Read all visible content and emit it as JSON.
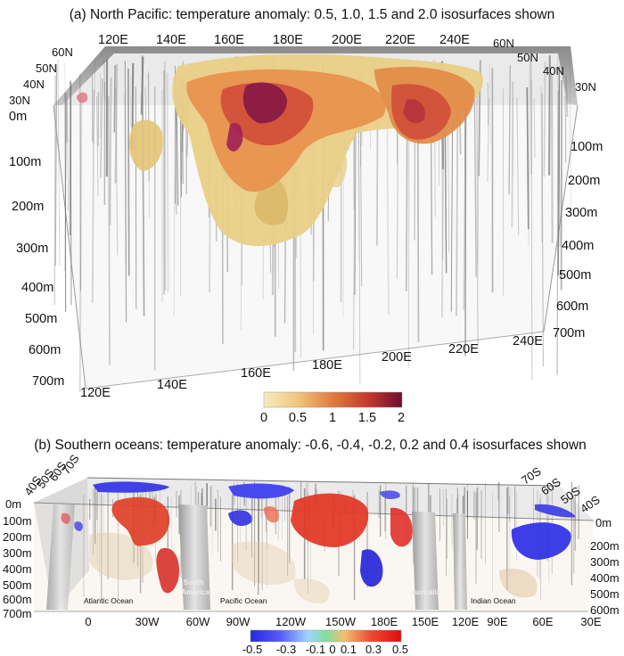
{
  "panel_a": {
    "title": "(a) North Pacific: temperature anomaly: 0.5, 1.0, 1.5 and 2.0 isosurfaces shown",
    "top_lon_labels": [
      "120E",
      "140E",
      "160E",
      "180E",
      "200E",
      "220E",
      "240E"
    ],
    "left_lat_labels": [
      "60N",
      "50N",
      "40N",
      "30N"
    ],
    "right_lat_labels": [
      "60N",
      "50N",
      "40N",
      "30N"
    ],
    "left_depth_labels": [
      "0m",
      "100m",
      "200m",
      "300m",
      "400m",
      "500m",
      "600m",
      "700m"
    ],
    "right_depth_labels": [
      "100m",
      "200m",
      "300m",
      "400m",
      "500m",
      "600m",
      "700m"
    ],
    "bottom_lon_labels": [
      "120E",
      "140E",
      "160E",
      "180E",
      "200E",
      "220E",
      "240E"
    ],
    "colorbar": {
      "ticks": [
        "0",
        "0.5",
        "1",
        "1.5",
        "2"
      ],
      "colors": [
        "#f5e6b0",
        "#eec27a",
        "#e08040",
        "#c83a2c",
        "#7a1030"
      ]
    }
  },
  "panel_b": {
    "title": "(b) Southern oceans: temperature anomaly: -0.6, -0.4, -0.2, 0.2 and 0.4 isosurfaces shown",
    "left_lat_labels": [
      "70S",
      "60S",
      "50S",
      "40S"
    ],
    "right_lat_labels": [
      "70S",
      "60S",
      "50S",
      "40S"
    ],
    "left_depth_labels": [
      "0m",
      "100m",
      "200m",
      "300m",
      "400m",
      "500m",
      "600m",
      "700m"
    ],
    "right_depth_labels": [
      "0m",
      "200m",
      "300m",
      "400m",
      "500m",
      "600m"
    ],
    "bottom_lon_labels": [
      "0",
      "30W",
      "60W",
      "90W",
      "120W",
      "150W",
      "180E",
      "150E",
      "120E",
      "90E",
      "60E",
      "30E"
    ],
    "region_labels": {
      "atlantic": "Atlantic Ocean",
      "south_america_1": "South",
      "south_america_2": "America",
      "pacific": "Pacific Ocean",
      "australia": "Australia",
      "indian": "Indian Ocean"
    },
    "colorbar": {
      "ticks": [
        "-0.5",
        "-0.3",
        "-0.1",
        "0",
        "0.1",
        "0.3",
        "0.5"
      ],
      "colors": [
        "#3030e0",
        "#6a6aff",
        "#9ad0ff",
        "#7fe0a0",
        "#f0b070",
        "#ee4030",
        "#e01010"
      ]
    }
  }
}
